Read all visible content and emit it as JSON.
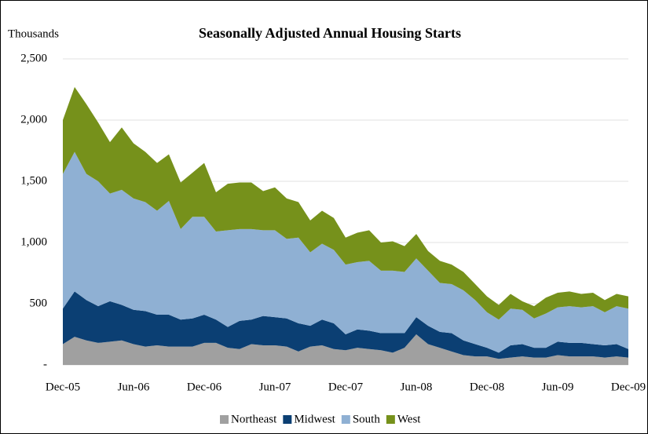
{
  "chart_data": {
    "type": "stacked_area",
    "title": "Seasonally Adjusted Annual Housing Starts",
    "y_label": "Thousands",
    "categories": [
      "Dec-05",
      null,
      null,
      null,
      null,
      null,
      "Jun-06",
      null,
      null,
      null,
      null,
      null,
      "Dec-06",
      null,
      null,
      null,
      null,
      null,
      "Jun-07",
      null,
      null,
      null,
      null,
      null,
      "Dec-07",
      null,
      null,
      null,
      null,
      null,
      "Jun-08",
      null,
      null,
      null,
      null,
      null,
      "Dec-08",
      null,
      null,
      null,
      null,
      null,
      "Jun-09",
      null,
      null,
      null,
      null,
      null,
      "Dec-09"
    ],
    "series": [
      {
        "name": "Northeast",
        "color": "#a0a0a0",
        "values": [
          170,
          230,
          200,
          180,
          190,
          200,
          170,
          150,
          160,
          150,
          150,
          150,
          180,
          180,
          140,
          130,
          170,
          160,
          160,
          150,
          110,
          150,
          160,
          130,
          120,
          140,
          130,
          120,
          100,
          140,
          250,
          170,
          140,
          110,
          80,
          70,
          70,
          50,
          60,
          70,
          60,
          60,
          80,
          70,
          70,
          70,
          60,
          70,
          60
        ]
      },
      {
        "name": "Midwest",
        "color": "#0b3f73",
        "values": [
          290,
          370,
          330,
          300,
          330,
          290,
          280,
          290,
          250,
          260,
          220,
          230,
          230,
          190,
          170,
          230,
          200,
          240,
          230,
          230,
          230,
          170,
          210,
          210,
          130,
          150,
          150,
          140,
          160,
          120,
          140,
          150,
          130,
          150,
          120,
          100,
          70,
          50,
          100,
          100,
          80,
          80,
          110,
          110,
          110,
          100,
          100,
          100,
          70
        ]
      },
      {
        "name": "South",
        "color": "#8fb0d3",
        "values": [
          1100,
          1140,
          1030,
          1020,
          880,
          940,
          910,
          890,
          850,
          930,
          740,
          830,
          800,
          720,
          790,
          750,
          740,
          700,
          710,
          650,
          700,
          600,
          620,
          600,
          570,
          550,
          570,
          510,
          510,
          500,
          480,
          450,
          400,
          400,
          410,
          360,
          290,
          270,
          300,
          280,
          240,
          280,
          280,
          300,
          290,
          310,
          270,
          310,
          330
        ]
      },
      {
        "name": "West",
        "color": "#76911b",
        "values": [
          440,
          530,
          570,
          480,
          420,
          510,
          450,
          410,
          390,
          380,
          380,
          360,
          440,
          320,
          380,
          380,
          380,
          320,
          350,
          330,
          290,
          260,
          270,
          260,
          220,
          240,
          250,
          230,
          240,
          210,
          200,
          160,
          180,
          160,
          150,
          130,
          130,
          120,
          120,
          70,
          100,
          130,
          120,
          120,
          110,
          110,
          100,
          100,
          100
        ]
      }
    ],
    "ylim": [
      0,
      2500
    ],
    "yticks": [
      {
        "value": 0,
        "label": "-"
      },
      500,
      {
        "value": 1000,
        "label": "1,000"
      },
      {
        "value": 1500,
        "label": "1,500"
      },
      {
        "value": 2000,
        "label": "2,000"
      },
      {
        "value": 2500,
        "label": "2,500"
      }
    ],
    "grid": true,
    "legend": "bottom"
  }
}
